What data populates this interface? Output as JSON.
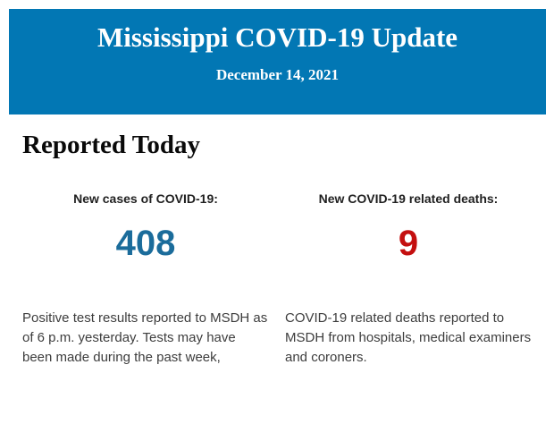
{
  "header": {
    "title": "Mississippi COVID-19 Update",
    "date": "December 14, 2021",
    "background_color": "#0277b4",
    "text_color": "#ffffff"
  },
  "main": {
    "section_title": "Reported Today",
    "stats": [
      {
        "label": "New cases of COVID-19:",
        "value": "408",
        "value_color": "#1b6c9b",
        "description": "Positive test results reported to MSDH as of 6 p.m. yesterday. Tests may have been made during the past week,"
      },
      {
        "label": "New COVID-19 related deaths:",
        "value": "9",
        "value_color": "#c40f0f",
        "description": "COVID-19 related deaths reported to MSDH from hospitals, medical examiners and coroners."
      }
    ]
  }
}
